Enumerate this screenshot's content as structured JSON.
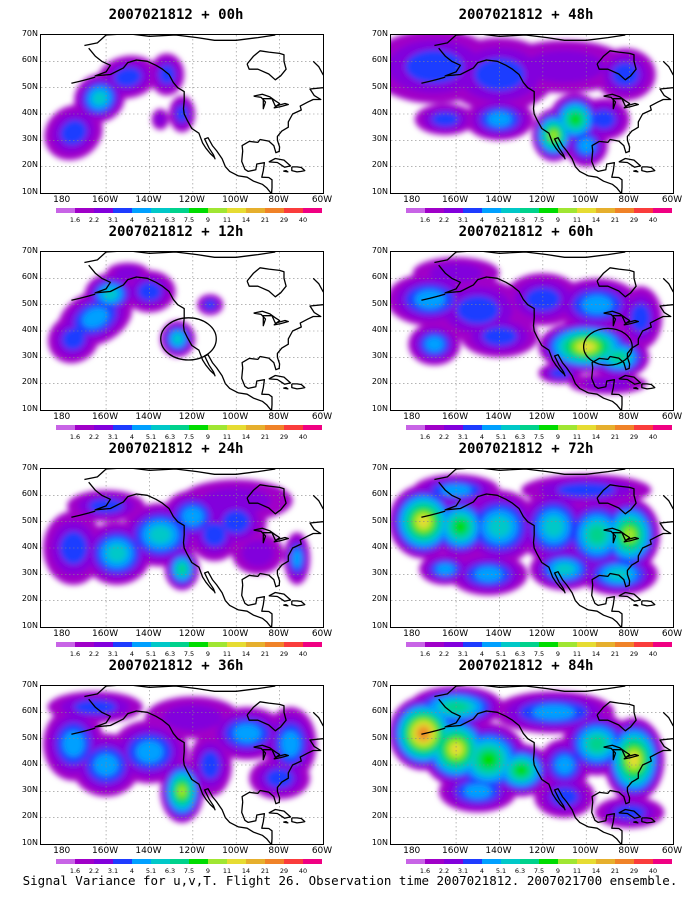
{
  "panels": [
    {
      "title": "2007021812 + 00h",
      "intensity": 0
    },
    {
      "title": "2007021812 + 48h",
      "intensity": 4
    },
    {
      "title": "2007021812 + 12h",
      "intensity": 1
    },
    {
      "title": "2007021812 + 60h",
      "intensity": 5
    },
    {
      "title": "2007021812 + 24h",
      "intensity": 2
    },
    {
      "title": "2007021812 + 72h",
      "intensity": 6
    },
    {
      "title": "2007021812 + 36h",
      "intensity": 3
    },
    {
      "title": "2007021812 + 84h",
      "intensity": 7
    }
  ],
  "y_ticks": [
    "70N",
    "60N",
    "50N",
    "40N",
    "30N",
    "20N",
    "10N"
  ],
  "x_ticks": [
    "180",
    "160W",
    "140W",
    "120W",
    "100W",
    "80W",
    "60W"
  ],
  "colorbar": {
    "labels": [
      "1.6",
      "2.2",
      "3.1",
      "4",
      "5.1",
      "6.3",
      "7.5",
      "9",
      "11",
      "14",
      "21",
      "29",
      "40"
    ],
    "colors": [
      "#a000c8",
      "#8200dc",
      "#1e3cff",
      "#00a0ff",
      "#00c8c8",
      "#00d28c",
      "#00dc00",
      "#a0e632",
      "#e6dc32",
      "#e6af2d",
      "#f08228",
      "#fa3c3c",
      "#f00082"
    ]
  },
  "caption": "Signal Variance for u,v,T. Flight 26. Observation time 2007021812. 2007021700 ensemble."
}
